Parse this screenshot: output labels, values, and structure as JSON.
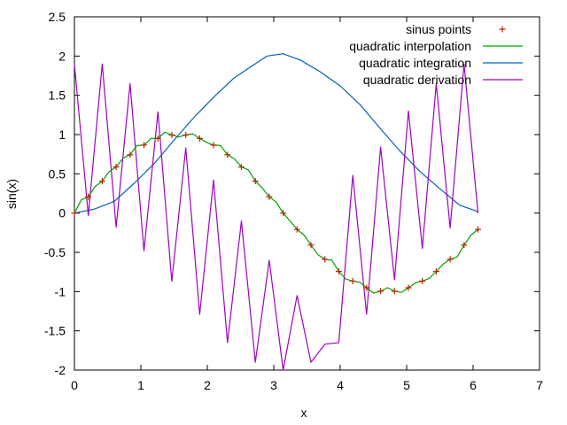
{
  "chart_data": {
    "type": "line",
    "xlabel": "x",
    "ylabel": "sin(x)",
    "xlim": [
      0,
      7
    ],
    "ylim": [
      -2,
      2.5
    ],
    "xticks": [
      "0",
      "1",
      "2",
      "3",
      "4",
      "5",
      "6",
      "7"
    ],
    "yticks": [
      "-2",
      "-1.5",
      "-1",
      "-0.5",
      "0",
      "0.5",
      "1",
      "1.5",
      "2",
      "2.5"
    ],
    "grid": false,
    "legend_position": "top-right",
    "series": [
      {
        "name": "sinus points",
        "style": "points",
        "color": "#c02000",
        "x": [
          0,
          0.209,
          0.419,
          0.628,
          0.838,
          1.047,
          1.257,
          1.466,
          1.676,
          1.885,
          2.094,
          2.304,
          2.513,
          2.723,
          2.932,
          3.142,
          3.351,
          3.56,
          3.77,
          3.979,
          4.189,
          4.398,
          4.608,
          4.817,
          5.027,
          5.236,
          5.445,
          5.655,
          5.864,
          6.074
        ],
        "y": [
          0,
          0.208,
          0.407,
          0.588,
          0.743,
          0.866,
          0.951,
          0.995,
          0.995,
          0.951,
          0.866,
          0.743,
          0.588,
          0.407,
          0.208,
          0,
          -0.208,
          -0.407,
          -0.588,
          -0.743,
          -0.866,
          -0.951,
          -0.995,
          -0.995,
          -0.951,
          -0.866,
          -0.743,
          -0.588,
          -0.407,
          -0.208
        ]
      },
      {
        "name": "quadratic interpolation",
        "style": "line",
        "color": "#00a000",
        "x": [
          0,
          0.105,
          0.209,
          0.314,
          0.419,
          0.524,
          0.628,
          0.733,
          0.838,
          0.942,
          1.047,
          1.152,
          1.257,
          1.361,
          1.466,
          1.571,
          1.676,
          1.78,
          1.885,
          1.99,
          2.094,
          2.199,
          2.304,
          2.409,
          2.513,
          2.618,
          2.723,
          2.827,
          2.932,
          3.037,
          3.142,
          3.246,
          3.351,
          3.456,
          3.56,
          3.665,
          3.77,
          3.875,
          3.979,
          4.084,
          4.189,
          4.293,
          4.398,
          4.503,
          4.608,
          4.712,
          4.817,
          4.922,
          5.027,
          5.131,
          5.236,
          5.341,
          5.445,
          5.55,
          5.655,
          5.76,
          5.864,
          5.969,
          6.074
        ],
        "y": [
          0,
          0.17,
          0.208,
          0.34,
          0.407,
          0.53,
          0.588,
          0.7,
          0.743,
          0.86,
          0.866,
          0.95,
          0.951,
          1.03,
          0.995,
          0.97,
          0.995,
          1.01,
          0.951,
          0.9,
          0.866,
          0.86,
          0.743,
          0.69,
          0.588,
          0.55,
          0.407,
          0.32,
          0.208,
          0.14,
          0,
          -0.1,
          -0.208,
          -0.28,
          -0.407,
          -0.53,
          -0.588,
          -0.6,
          -0.743,
          -0.84,
          -0.866,
          -0.88,
          -0.951,
          -1.02,
          -0.995,
          -0.95,
          -0.995,
          -1.01,
          -0.951,
          -0.89,
          -0.866,
          -0.83,
          -0.743,
          -0.65,
          -0.588,
          -0.56,
          -0.407,
          -0.28,
          -0.208
        ]
      },
      {
        "name": "quadratic integration",
        "style": "line",
        "color": "#0060c0",
        "x": [
          0,
          0.3,
          0.6,
          0.9,
          1.2,
          1.5,
          1.8,
          2.1,
          2.4,
          2.7,
          2.9,
          3.14,
          3.4,
          3.7,
          4.0,
          4.3,
          4.6,
          4.9,
          5.2,
          5.5,
          5.8,
          6.07
        ],
        "y": [
          0,
          0.05,
          0.15,
          0.38,
          0.63,
          0.93,
          1.22,
          1.48,
          1.72,
          1.89,
          2.0,
          2.03,
          1.95,
          1.8,
          1.62,
          1.38,
          1.08,
          0.79,
          0.53,
          0.31,
          0.1,
          0.02
        ]
      },
      {
        "name": "quadratic derivation",
        "style": "line",
        "color": "#a000c0",
        "x": [
          0,
          0.209,
          0.419,
          0.628,
          0.838,
          1.047,
          1.257,
          1.466,
          1.676,
          1.885,
          2.094,
          2.304,
          2.513,
          2.723,
          2.932,
          3.142,
          3.351,
          3.56,
          3.77,
          3.979,
          4.189,
          4.398,
          4.608,
          4.817,
          5.027,
          5.236,
          5.445,
          5.655,
          5.864,
          6.074
        ],
        "y": [
          1.9,
          -0.03,
          1.9,
          -0.18,
          1.65,
          -0.48,
          1.29,
          -0.87,
          0.83,
          -1.29,
          0.42,
          -1.65,
          -0.1,
          -1.9,
          -0.6,
          -2.0,
          -1.05,
          -1.9,
          -1.67,
          -1.65,
          0.48,
          -1.29,
          0.84,
          -0.85,
          1.3,
          -0.45,
          1.65,
          -0.19,
          1.9,
          0.0
        ]
      }
    ]
  }
}
